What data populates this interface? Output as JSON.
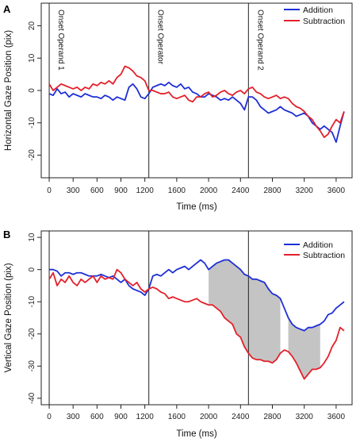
{
  "chart_data": [
    {
      "panel_label": "A",
      "type": "line",
      "xlabel": "Time (ms)",
      "ylabel": "Horizontal Gaze Position (pix)",
      "xlim": [
        -100,
        3800
      ],
      "ylim": [
        -27,
        27
      ],
      "xticks": [
        "0",
        "300",
        "600",
        "900",
        "1200",
        "1600",
        "2000",
        "2400",
        "2800",
        "3200",
        "3600"
      ],
      "yticks": [
        "-20",
        "-10",
        "0",
        "10",
        "20"
      ],
      "legend": {
        "position": "top-right"
      },
      "vlines": [
        {
          "x": 0,
          "label": "Onset Operand 1"
        },
        {
          "x": 1250,
          "label": "Onset Operator"
        },
        {
          "x": 2500,
          "label": "Onset Operand 2"
        }
      ],
      "series": [
        {
          "name": "Addition",
          "color": "#1e2fd6",
          "x": [
            0,
            50,
            100,
            150,
            200,
            250,
            300,
            350,
            400,
            450,
            500,
            550,
            600,
            650,
            700,
            750,
            800,
            850,
            900,
            950,
            1000,
            1050,
            1100,
            1150,
            1200,
            1250,
            1300,
            1350,
            1400,
            1450,
            1500,
            1550,
            1600,
            1650,
            1700,
            1750,
            1800,
            1850,
            1900,
            1950,
            2000,
            2050,
            2100,
            2150,
            2200,
            2250,
            2300,
            2350,
            2400,
            2450,
            2500,
            2550,
            2600,
            2650,
            2700,
            2750,
            2800,
            2850,
            2900,
            2950,
            3000,
            3050,
            3100,
            3150,
            3200,
            3250,
            3300,
            3350,
            3400,
            3450,
            3500,
            3550,
            3600,
            3650,
            3700
          ],
          "y": [
            -1,
            -1.5,
            0.5,
            -1,
            -0.5,
            -2,
            -1,
            -1.5,
            -2,
            -1,
            -1.5,
            -2,
            -2,
            -2.5,
            -1.5,
            -2,
            -3,
            -2,
            -2.5,
            -3,
            1,
            2,
            0.5,
            -2,
            -2.5,
            -1,
            1,
            1.5,
            2,
            1.5,
            2.5,
            1.5,
            1,
            2,
            0.5,
            1,
            -0.5,
            -1,
            -2,
            -2,
            -1,
            -1.5,
            -2,
            -3,
            -2.5,
            -3,
            -2,
            -3,
            -4,
            -6,
            -2,
            -2,
            -3,
            -5,
            -6,
            -7,
            -6.5,
            -6,
            -5,
            -6,
            -6.5,
            -7,
            -8,
            -7.5,
            -7,
            -8,
            -10,
            -11,
            -12,
            -11,
            -12,
            -13,
            -16,
            -11,
            -6.5
          ]
        },
        {
          "name": "Subtraction",
          "color": "#e3202a",
          "x": [
            0,
            50,
            100,
            150,
            200,
            250,
            300,
            350,
            400,
            450,
            500,
            550,
            600,
            650,
            700,
            750,
            800,
            850,
            900,
            950,
            1000,
            1050,
            1100,
            1150,
            1200,
            1250,
            1300,
            1350,
            1400,
            1450,
            1500,
            1550,
            1600,
            1650,
            1700,
            1750,
            1800,
            1850,
            1900,
            1950,
            2000,
            2050,
            2100,
            2150,
            2200,
            2250,
            2300,
            2350,
            2400,
            2450,
            2500,
            2550,
            2600,
            2650,
            2700,
            2750,
            2800,
            2850,
            2900,
            2950,
            3000,
            3050,
            3100,
            3150,
            3200,
            3250,
            3300,
            3350,
            3400,
            3450,
            3500,
            3550,
            3600,
            3650,
            3700
          ],
          "y": [
            2,
            0,
            1,
            2,
            1.5,
            1,
            0.5,
            1,
            0,
            1,
            0.5,
            2,
            1.5,
            2.5,
            2,
            3,
            2,
            4,
            5,
            7.5,
            7,
            6,
            4.5,
            4,
            3,
            0,
            0,
            -0.5,
            -1,
            -1,
            -0.5,
            -2,
            -2.5,
            -2,
            -1.5,
            -3,
            -3.5,
            -2,
            -2,
            -1,
            -0.5,
            -2,
            -1.5,
            -0.5,
            0,
            -1,
            -1.5,
            -0.5,
            0,
            -1,
            0.5,
            1,
            -0.5,
            -1,
            -2,
            -2.5,
            -2,
            -1.5,
            -2.5,
            -2,
            -2.5,
            -4,
            -5,
            -5.5,
            -6.5,
            -8,
            -9,
            -11,
            -12.5,
            -14.5,
            -13.5,
            -11,
            -9,
            -10,
            -6.5
          ]
        }
      ]
    },
    {
      "panel_label": "B",
      "type": "line",
      "xlabel": "Time (ms)",
      "ylabel": "Vertical Gaze Position (pix)",
      "xlim": [
        -100,
        3800
      ],
      "ylim": [
        -42,
        12
      ],
      "xticks": [
        "0",
        "300",
        "600",
        "900",
        "1200",
        "1600",
        "2000",
        "2400",
        "2800",
        "3200",
        "3600"
      ],
      "yticks": [
        "-40",
        "-30",
        "-20",
        "-10",
        "0",
        "10"
      ],
      "legend": {
        "position": "top-right"
      },
      "vlines": [
        {
          "x": 0
        },
        {
          "x": 1250
        },
        {
          "x": 2500
        }
      ],
      "shaded_regions": [
        [
          2000,
          2900
        ],
        [
          3000,
          3400
        ]
      ],
      "series": [
        {
          "name": "Addition",
          "color": "#1e2fd6",
          "x": [
            0,
            50,
            100,
            150,
            200,
            250,
            300,
            350,
            400,
            450,
            500,
            550,
            600,
            650,
            700,
            750,
            800,
            850,
            900,
            950,
            1000,
            1050,
            1100,
            1150,
            1200,
            1250,
            1300,
            1350,
            1400,
            1450,
            1500,
            1550,
            1600,
            1650,
            1700,
            1750,
            1800,
            1850,
            1900,
            1950,
            2000,
            2050,
            2100,
            2150,
            2200,
            2250,
            2300,
            2350,
            2400,
            2450,
            2500,
            2550,
            2600,
            2650,
            2700,
            2750,
            2800,
            2850,
            2900,
            2950,
            3000,
            3050,
            3100,
            3150,
            3200,
            3250,
            3300,
            3350,
            3400,
            3450,
            3500,
            3550,
            3600,
            3650,
            3700
          ],
          "y": [
            0,
            0,
            -0.5,
            -2,
            -1,
            -1,
            -1.5,
            -1,
            -1,
            -1.5,
            -2,
            -2,
            -2,
            -1.5,
            -2,
            -2.5,
            -2,
            -3,
            -4,
            -3,
            -5,
            -6,
            -6.5,
            -7,
            -8,
            -6,
            -2,
            -1.5,
            -2,
            -1,
            0,
            -1,
            0,
            0.5,
            1,
            0,
            1,
            2,
            3,
            2,
            0,
            1,
            2,
            2.5,
            3,
            3,
            2,
            1,
            0,
            -1.5,
            -2,
            -3,
            -3,
            -3.5,
            -4,
            -6,
            -7.5,
            -8,
            -9,
            -12,
            -15,
            -17,
            -18,
            -18.5,
            -19,
            -18,
            -18,
            -17.5,
            -17,
            -16,
            -14,
            -13.5,
            -12,
            -11,
            -10
          ]
        },
        {
          "name": "Subtraction",
          "color": "#e3202a",
          "x": [
            0,
            50,
            100,
            150,
            200,
            250,
            300,
            350,
            400,
            450,
            500,
            550,
            600,
            650,
            700,
            750,
            800,
            850,
            900,
            950,
            1000,
            1050,
            1100,
            1150,
            1200,
            1250,
            1300,
            1350,
            1400,
            1450,
            1500,
            1550,
            1600,
            1650,
            1700,
            1750,
            1800,
            1850,
            1900,
            1950,
            2000,
            2050,
            2100,
            2150,
            2200,
            2250,
            2300,
            2350,
            2400,
            2450,
            2500,
            2550,
            2600,
            2650,
            2700,
            2750,
            2800,
            2850,
            2900,
            2950,
            3000,
            3050,
            3100,
            3150,
            3200,
            3250,
            3300,
            3350,
            3400,
            3450,
            3500,
            3550,
            3600,
            3650,
            3700
          ],
          "y": [
            -3,
            -1,
            -5,
            -3,
            -4,
            -2,
            -4,
            -5,
            -3,
            -4,
            -3,
            -2,
            -4,
            -2,
            -3,
            -2.5,
            -3,
            0,
            -1,
            -3,
            -4,
            -5,
            -4,
            -6,
            -7,
            -6,
            -5.5,
            -6,
            -7,
            -7.5,
            -9,
            -8.5,
            -9,
            -9.5,
            -10,
            -10,
            -9.5,
            -9,
            -10,
            -10.5,
            -11,
            -11,
            -12,
            -13,
            -15,
            -16,
            -17,
            -20,
            -21,
            -24,
            -26,
            -27.5,
            -28,
            -28,
            -28.5,
            -28.5,
            -29,
            -28,
            -26,
            -25,
            -25.5,
            -27,
            -29,
            -31.5,
            -34,
            -32.5,
            -31,
            -31,
            -30.5,
            -29,
            -27,
            -24,
            -22,
            -18,
            -19
          ]
        }
      ]
    }
  ]
}
